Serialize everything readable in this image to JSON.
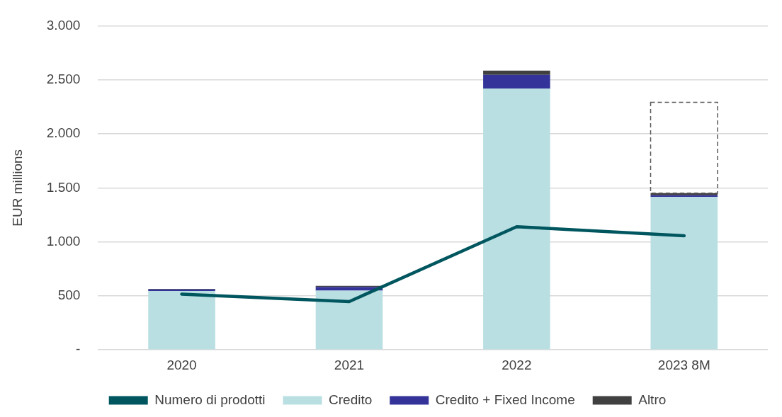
{
  "chart_data": {
    "type": "bar",
    "stacked": true,
    "ylabel": "EUR millions",
    "categories": [
      "2020",
      "2021",
      "2022",
      "2023 8M"
    ],
    "series": [
      {
        "name": "Credito",
        "color": "#b9dfe2",
        "values": [
          545,
          548,
          2420,
          1415
        ]
      },
      {
        "name": "Credito + Fixed Income",
        "color": "#333399",
        "values": [
          15,
          35,
          125,
          17
        ]
      },
      {
        "name": "Altro",
        "color": "#404040",
        "values": [
          5,
          10,
          40,
          20
        ]
      },
      {
        "color": "#595959",
        "line_style": "dashed",
        "values": [
          null,
          null,
          null,
          840
        ]
      },
      {
        "name": "Numero di prodotti",
        "type": "line",
        "color": "#00565f",
        "values": [
          516,
          447,
          1140,
          1056
        ]
      }
    ],
    "ylim": [
      0,
      3000
    ],
    "yticks": [
      {
        "value": 0,
        "label": "-"
      },
      {
        "value": 500,
        "label": "500"
      },
      {
        "value": 1000,
        "label": "1.000"
      },
      {
        "value": 1500,
        "label": "1.500"
      },
      {
        "value": 2000,
        "label": "2.000"
      },
      {
        "value": 2500,
        "label": "2.500"
      },
      {
        "value": 3000,
        "label": "3.000"
      }
    ],
    "grid": "y",
    "legend": "bottom",
    "marker": "none"
  }
}
